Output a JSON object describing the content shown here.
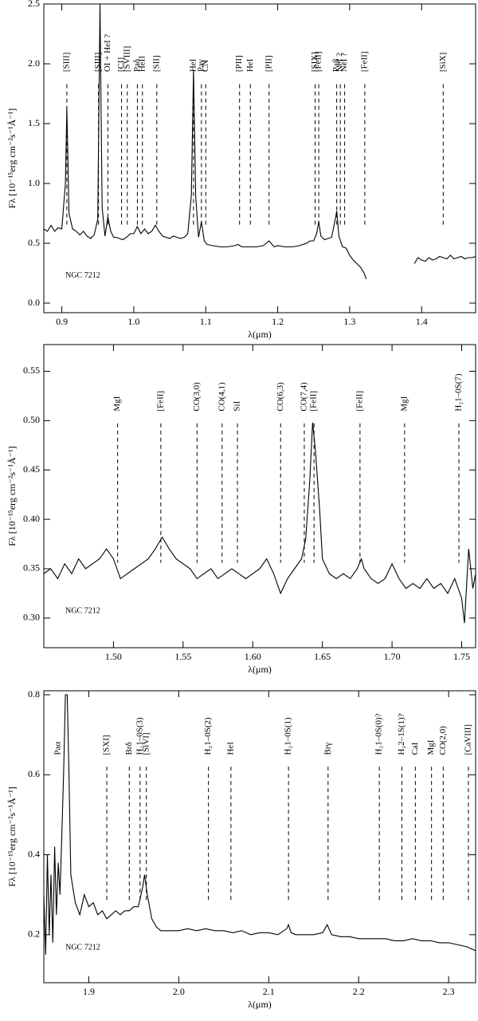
{
  "chart_data": [
    {
      "type": "line",
      "color": "#000000",
      "xlabel": "λ(μm)",
      "ylabel": "Fλ [10⁻¹⁵erg cm⁻²s⁻¹Å⁻¹]",
      "label": "NGC 7212",
      "xlim": [
        0.875,
        1.475
      ],
      "ylim": [
        -0.08,
        2.5
      ],
      "xticks": [
        0.9,
        {
          "value": 1.0,
          "label": "1.0"
        },
        1.1,
        1.2,
        1.3,
        1.4
      ],
      "yticks": [
        {
          "value": 0,
          "label": "0.0"
        },
        0.5,
        {
          "value": 1,
          "label": "1.0"
        },
        1.5,
        {
          "value": 2,
          "label": "2.0"
        },
        2.5
      ],
      "x": [
        0.875,
        0.88,
        0.885,
        0.89,
        0.895,
        0.9,
        0.905,
        0.907,
        0.91,
        0.915,
        0.92,
        0.925,
        0.93,
        0.935,
        0.94,
        0.945,
        0.95,
        0.953,
        0.956,
        0.96,
        0.964,
        0.968,
        0.972,
        0.976,
        0.98,
        0.985,
        0.99,
        0.995,
        1.0,
        1.005,
        1.01,
        1.015,
        1.02,
        1.025,
        1.03,
        1.035,
        1.04,
        1.045,
        1.05,
        1.055,
        1.06,
        1.065,
        1.07,
        1.075,
        1.08,
        1.083,
        1.086,
        1.09,
        1.094,
        1.098,
        1.102,
        1.11,
        1.12,
        1.13,
        1.14,
        1.145,
        1.15,
        1.16,
        1.17,
        1.18,
        1.188,
        1.195,
        1.2,
        1.21,
        1.22,
        1.23,
        1.24,
        1.245,
        1.25,
        1.254,
        1.257,
        1.26,
        1.265,
        1.27,
        1.275,
        1.28,
        1.282,
        1.285,
        1.29,
        1.295,
        1.3,
        1.305,
        1.31,
        1.315,
        1.32,
        1.323,
        1.36,
        1.39,
        1.395,
        1.4,
        1.405,
        1.41,
        1.415,
        1.42,
        1.425,
        1.43,
        1.435,
        1.44,
        1.445,
        1.45,
        1.455,
        1.46,
        1.465,
        1.47,
        1.475
      ],
      "values": [
        0.62,
        0.6,
        0.65,
        0.6,
        0.63,
        0.62,
        1.0,
        1.63,
        0.75,
        0.62,
        0.6,
        0.57,
        0.6,
        0.56,
        0.54,
        0.57,
        0.7,
        2.5,
        0.8,
        0.56,
        0.72,
        0.6,
        0.55,
        0.55,
        0.54,
        0.53,
        0.55,
        0.58,
        0.58,
        0.64,
        0.58,
        0.62,
        0.58,
        0.6,
        0.65,
        0.6,
        0.56,
        0.55,
        0.54,
        0.56,
        0.55,
        0.54,
        0.55,
        0.58,
        0.9,
        1.95,
        0.9,
        0.55,
        0.68,
        0.52,
        0.49,
        0.48,
        0.47,
        0.47,
        0.48,
        0.49,
        0.47,
        0.47,
        0.47,
        0.48,
        0.52,
        0.47,
        0.48,
        0.47,
        0.47,
        0.48,
        0.5,
        0.52,
        0.52,
        0.58,
        0.68,
        0.56,
        0.53,
        0.54,
        0.55,
        0.7,
        0.77,
        0.56,
        0.47,
        0.46,
        0.4,
        0.36,
        0.33,
        0.3,
        0.25,
        0.2,
        null,
        0.33,
        0.38,
        0.36,
        0.35,
        0.38,
        0.36,
        0.37,
        0.39,
        0.38,
        0.37,
        0.4,
        0.37,
        0.38,
        0.39,
        0.37,
        0.38,
        0.38,
        0.39
      ],
      "annotations": [
        {
          "text": "[SIII]",
          "x": 0.907
        },
        {
          "text": "[SIII]",
          "x": 0.951
        },
        {
          "text": "OI + HeI ?",
          "x": 0.964
        },
        {
          "text": "[CI]",
          "x": 0.983
        },
        {
          "text": "[SVIII]",
          "x": 0.991
        },
        {
          "text": "Paδ",
          "x": 1.005
        },
        {
          "text": "HeII",
          "x": 1.012
        },
        {
          "text": "[SII]",
          "x": 1.032
        },
        {
          "text": "HeI",
          "x": 1.083
        },
        {
          "text": "Paγ",
          "x": 1.094
        },
        {
          "text": "CN",
          "x": 1.1
        },
        {
          "text": "[PII]",
          "x": 1.147
        },
        {
          "text": "HeI",
          "x": 1.162
        },
        {
          "text": "[PII]",
          "x": 1.188
        },
        {
          "text": "[SIX]",
          "x": 1.252
        },
        {
          "text": "[FeII]",
          "x": 1.257
        },
        {
          "text": "Paβ",
          "x": 1.282
        },
        {
          "text": "NeI ?",
          "x": 1.287
        },
        {
          "text": "NeI ?",
          "x": 1.293
        },
        {
          "text": "[FeII]",
          "x": 1.321
        },
        {
          "text": "[SiX]",
          "x": 1.43
        }
      ]
    },
    {
      "type": "line",
      "color": "#000000",
      "xlabel": "λ(μm)",
      "ylabel": "Fλ [10⁻¹⁵erg cm⁻²s⁻¹Å⁻¹]",
      "label": "NGC 7212",
      "xlim": [
        1.45,
        1.76
      ],
      "ylim": [
        0.27,
        0.577
      ],
      "xticks": [
        {
          "value": 1.5,
          "label": "1.50"
        },
        1.55,
        {
          "value": 1.6,
          "label": "1.60"
        },
        1.65,
        {
          "value": 1.7,
          "label": "1.70"
        },
        1.75
      ],
      "yticks": [
        {
          "value": 0.3,
          "label": "0.30"
        },
        0.35,
        {
          "value": 0.4,
          "label": "0.40"
        },
        0.45,
        {
          "value": 0.5,
          "label": "0.50"
        },
        0.55
      ],
      "x": [
        1.45,
        1.455,
        1.46,
        1.465,
        1.47,
        1.475,
        1.48,
        1.485,
        1.49,
        1.495,
        1.5,
        1.505,
        1.51,
        1.515,
        1.52,
        1.525,
        1.53,
        1.535,
        1.54,
        1.545,
        1.55,
        1.555,
        1.56,
        1.565,
        1.57,
        1.575,
        1.58,
        1.585,
        1.59,
        1.595,
        1.6,
        1.605,
        1.61,
        1.615,
        1.62,
        1.625,
        1.63,
        1.635,
        1.638,
        1.641,
        1.643,
        1.645,
        1.648,
        1.65,
        1.655,
        1.66,
        1.665,
        1.67,
        1.675,
        1.678,
        1.68,
        1.685,
        1.69,
        1.695,
        1.7,
        1.705,
        1.71,
        1.715,
        1.72,
        1.725,
        1.73,
        1.735,
        1.74,
        1.745,
        1.75,
        1.752,
        1.755,
        1.758,
        1.76
      ],
      "values": [
        0.345,
        0.35,
        0.34,
        0.355,
        0.345,
        0.36,
        0.35,
        0.355,
        0.36,
        0.37,
        0.36,
        0.34,
        0.345,
        0.35,
        0.355,
        0.36,
        0.37,
        0.382,
        0.37,
        0.36,
        0.355,
        0.35,
        0.34,
        0.345,
        0.35,
        0.34,
        0.345,
        0.35,
        0.345,
        0.34,
        0.345,
        0.35,
        0.36,
        0.345,
        0.325,
        0.34,
        0.35,
        0.36,
        0.38,
        0.44,
        0.498,
        0.47,
        0.41,
        0.36,
        0.345,
        0.34,
        0.345,
        0.34,
        0.35,
        0.36,
        0.35,
        0.34,
        0.335,
        0.34,
        0.355,
        0.34,
        0.33,
        0.335,
        0.33,
        0.34,
        0.33,
        0.335,
        0.325,
        0.34,
        0.32,
        0.295,
        0.37,
        0.33,
        0.345
      ],
      "annotations": [
        {
          "text": "MgI",
          "x": 1.503
        },
        {
          "text": "[FeII]",
          "x": 1.534
        },
        {
          "text": "CO(3,0)",
          "x": 1.56
        },
        {
          "text": "CO(4,1)",
          "x": 1.578
        },
        {
          "text": "SiI",
          "x": 1.589
        },
        {
          "text": "CO(6,3)",
          "x": 1.62
        },
        {
          "text": "CO(7,4)",
          "x": 1.637
        },
        {
          "text": "[FeII]",
          "x": 1.644
        },
        {
          "text": "[FeII]",
          "x": 1.677
        },
        {
          "text": "MgI",
          "x": 1.709
        },
        {
          "text": "H₂1–0S(7)",
          "x": 1.748
        }
      ]
    },
    {
      "type": "line",
      "color": "#000000",
      "xlabel": "λ(μm)",
      "ylabel": "Fλ [10⁻¹⁵erg cm⁻²s⁻¹Å⁻¹]",
      "label": "NGC 7212",
      "xlim": [
        1.85,
        2.33
      ],
      "ylim": [
        0.08,
        0.81
      ],
      "xticks": [
        1.9,
        {
          "value": 2.0,
          "label": "2.0"
        },
        2.1,
        2.2,
        2.3
      ],
      "yticks": [
        0.2,
        0.4,
        0.6,
        0.8
      ],
      "x": [
        1.85,
        1.852,
        1.854,
        1.856,
        1.858,
        1.86,
        1.862,
        1.864,
        1.866,
        1.868,
        1.87,
        1.872,
        1.874,
        1.876,
        1.878,
        1.88,
        1.885,
        1.89,
        1.895,
        1.9,
        1.905,
        1.91,
        1.915,
        1.92,
        1.925,
        1.93,
        1.935,
        1.94,
        1.945,
        1.95,
        1.955,
        1.96,
        1.962,
        1.965,
        1.97,
        1.975,
        1.98,
        1.99,
        2.0,
        2.01,
        2.02,
        2.03,
        2.04,
        2.05,
        2.06,
        2.07,
        2.08,
        2.09,
        2.1,
        2.11,
        2.12,
        2.122,
        2.125,
        2.13,
        2.14,
        2.15,
        2.16,
        2.165,
        2.17,
        2.18,
        2.19,
        2.2,
        2.21,
        2.22,
        2.23,
        2.24,
        2.25,
        2.26,
        2.27,
        2.28,
        2.29,
        2.3,
        2.31,
        2.32,
        2.325,
        2.33
      ],
      "values": [
        0.3,
        0.15,
        0.4,
        0.2,
        0.35,
        0.18,
        0.42,
        0.25,
        0.38,
        0.3,
        0.45,
        0.6,
        0.8,
        0.8,
        0.6,
        0.35,
        0.28,
        0.25,
        0.3,
        0.27,
        0.28,
        0.25,
        0.26,
        0.24,
        0.25,
        0.26,
        0.25,
        0.26,
        0.26,
        0.27,
        0.27,
        0.32,
        0.35,
        0.3,
        0.24,
        0.22,
        0.21,
        0.21,
        0.21,
        0.215,
        0.21,
        0.215,
        0.21,
        0.21,
        0.205,
        0.21,
        0.2,
        0.205,
        0.205,
        0.2,
        0.215,
        0.225,
        0.205,
        0.2,
        0.2,
        0.2,
        0.205,
        0.225,
        0.2,
        0.195,
        0.195,
        0.19,
        0.19,
        0.19,
        0.19,
        0.185,
        0.185,
        0.19,
        0.185,
        0.185,
        0.18,
        0.18,
        0.175,
        0.17,
        0.165,
        0.16
      ],
      "annotations": [
        {
          "text": "Paα",
          "x": 1.866,
          "dash": false
        },
        {
          "text": "[SXI]",
          "x": 1.92
        },
        {
          "text": "Brδ",
          "x": 1.945
        },
        {
          "text": "H₂1–0S(3)",
          "x": 1.957
        },
        {
          "text": "[SiVI]",
          "x": 1.964
        },
        {
          "text": "H₂1–0S(2)",
          "x": 2.033
        },
        {
          "text": "HeI",
          "x": 2.058
        },
        {
          "text": "H₂1–0S(1)",
          "x": 2.122
        },
        {
          "text": "Brγ",
          "x": 2.166
        },
        {
          "text": "H₂1–0S(0)?",
          "x": 2.223
        },
        {
          "text": "H₂2–1S(1)?",
          "x": 2.248
        },
        {
          "text": "CaI",
          "x": 2.263
        },
        {
          "text": "MgI",
          "x": 2.281
        },
        {
          "text": "CO(2,0)",
          "x": 2.294
        },
        {
          "text": "[CaVIII]",
          "x": 2.322
        }
      ]
    }
  ]
}
